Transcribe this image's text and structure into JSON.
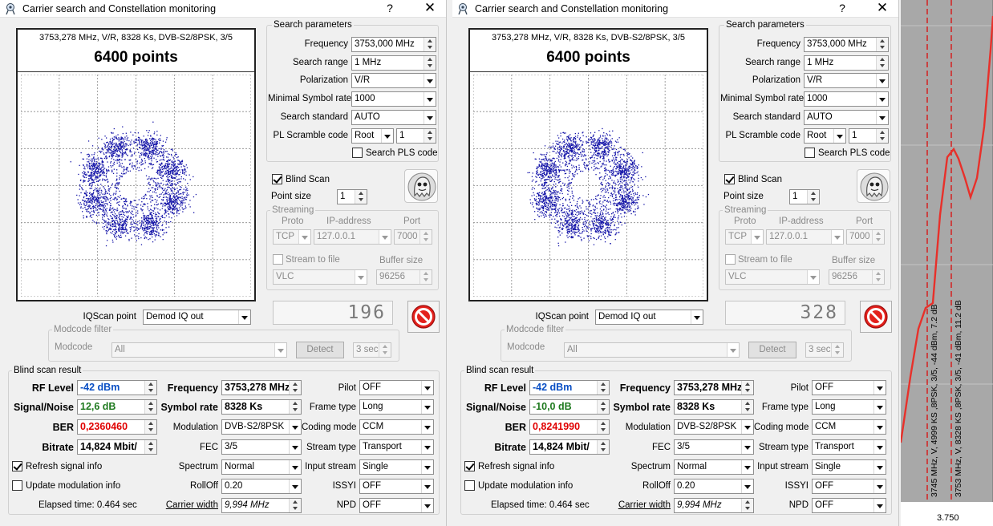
{
  "window": {
    "title": "Carrier search and Constellation monitoring",
    "help": "?",
    "close": "✕"
  },
  "dialogs": [
    {
      "constellation": {
        "info": "3753,278 MHz, V/R, 8328 Ks, DVB-S2/8PSK, 3/5",
        "points": "6400 points"
      },
      "search": {
        "group": "Search parameters",
        "frequency_label": "Frequency",
        "frequency": "3753,000 MHz",
        "range_label": "Search range",
        "range": "1 MHz",
        "polarization_label": "Polarization",
        "polarization": "V/R",
        "min_sr_label": "Minimal Symbol rate",
        "min_sr": "1000",
        "standard_label": "Search standard",
        "standard": "AUTO",
        "pls_label": "PL Scramble code",
        "pls_mode": "Root",
        "pls_value": "1",
        "search_pls_label": "Search PLS code"
      },
      "blind_scan_label": "Blind Scan",
      "point_size_label": "Point size",
      "point_size": "1",
      "streaming": {
        "group": "Streaming",
        "proto_label": "Proto",
        "ip_label": "IP-address",
        "port_label": "Port",
        "proto": "TCP",
        "ip": "127.0.0.1",
        "port": "7000",
        "stream_file_label": "Stream to file",
        "buffer_label": "Buffer size",
        "player": "VLC",
        "buffer": "96256"
      },
      "counter": "196",
      "iqscan_label": "IQScan point",
      "iqscan": "Demod IQ out",
      "modcode": {
        "group": "Modcode filter",
        "label": "Modcode",
        "value": "All",
        "detect": "Detect",
        "interval": "3 sec"
      },
      "result": {
        "group": "Blind scan result",
        "rf_label": "RF Level",
        "rf": "-42 dBm",
        "sn_label": "Signal/Noise",
        "sn": "12,6 dB",
        "sn_color": "green",
        "ber_label": "BER",
        "ber": "0,2360460",
        "bitrate_label": "Bitrate",
        "bitrate": "14,824 Mbit/",
        "freq_label": "Frequency",
        "freq": "3753,278 MHz",
        "sr_label": "Symbol rate",
        "sr": "8328 Ks",
        "mod_label": "Modulation",
        "mod": "DVB-S2/8PSK",
        "fec_label": "FEC",
        "fec": "3/5",
        "spectrum_label": "Spectrum",
        "spectrum": "Normal",
        "rolloff_label": "RollOff",
        "rolloff": "0.20",
        "cw_label": "Carrier width",
        "cw": "9,994 MHz",
        "pilot_label": "Pilot",
        "pilot": "OFF",
        "frame_label": "Frame type",
        "frame": "Long",
        "coding_label": "Coding mode",
        "coding": "CCM",
        "stream_label": "Stream type",
        "stream": "Transport",
        "input_label": "Input stream",
        "input": "Single",
        "issyi_label": "ISSYI",
        "issyi": "OFF",
        "npd_label": "NPD",
        "npd": "OFF",
        "refresh_label": "Refresh signal info",
        "update_label": "Update modulation info",
        "elapsed": "Elapsed time: 0.464 sec"
      }
    },
    {
      "constellation": {
        "info": "3753,278 MHz, V/R, 8328 Ks, DVB-S2/8PSK, 3/5",
        "points": "6400 points"
      },
      "search": {
        "group": "Search parameters",
        "frequency_label": "Frequency",
        "frequency": "3753,000 MHz",
        "range_label": "Search range",
        "range": "1 MHz",
        "polarization_label": "Polarization",
        "polarization": "V/R",
        "min_sr_label": "Minimal Symbol rate",
        "min_sr": "1000",
        "standard_label": "Search standard",
        "standard": "AUTO",
        "pls_label": "PL Scramble code",
        "pls_mode": "Root",
        "pls_value": "1",
        "search_pls_label": "Search PLS code"
      },
      "blind_scan_label": "Blind Scan",
      "point_size_label": "Point size",
      "point_size": "1",
      "streaming": {
        "group": "Streaming",
        "proto_label": "Proto",
        "ip_label": "IP-address",
        "port_label": "Port",
        "proto": "TCP",
        "ip": "127.0.0.1",
        "port": "7000",
        "stream_file_label": "Stream to file",
        "buffer_label": "Buffer size",
        "player": "VLC",
        "buffer": "96256"
      },
      "counter": "328",
      "iqscan_label": "IQScan point",
      "iqscan": "Demod IQ out",
      "modcode": {
        "group": "Modcode filter",
        "label": "Modcode",
        "value": "All",
        "detect": "Detect",
        "interval": "3 sec"
      },
      "result": {
        "group": "Blind scan result",
        "rf_label": "RF Level",
        "rf": "-42 dBm",
        "sn_label": "Signal/Noise",
        "sn": "-10,0 dB",
        "sn_color": "green",
        "ber_label": "BER",
        "ber": "0,8241990",
        "bitrate_label": "Bitrate",
        "bitrate": "14,824 Mbit/",
        "freq_label": "Frequency",
        "freq": "3753,278 MHz",
        "sr_label": "Symbol rate",
        "sr": "8328 Ks",
        "mod_label": "Modulation",
        "mod": "DVB-S2/8PSK",
        "fec_label": "FEC",
        "fec": "3/5",
        "spectrum_label": "Spectrum",
        "spectrum": "Normal",
        "rolloff_label": "RollOff",
        "rolloff": "0.20",
        "cw_label": "Carrier width",
        "cw": "9,994 MHz",
        "pilot_label": "Pilot",
        "pilot": "OFF",
        "frame_label": "Frame type",
        "frame": "Long",
        "coding_label": "Coding mode",
        "coding": "CCM",
        "stream_label": "Stream type",
        "stream": "Transport",
        "input_label": "Input stream",
        "input": "Single",
        "issyi_label": "ISSYI",
        "issyi": "OFF",
        "npd_label": "NPD",
        "npd": "OFF",
        "refresh_label": "Refresh signal info",
        "update_label": "Update modulation info",
        "elapsed": "Elapsed time: 0.464 sec"
      }
    }
  ],
  "spectrum": {
    "marker1": "3745 MHz, V, 4999 KS ,8PSK, 3/5, -44 dBm, 7.2 dB",
    "marker2": "3753 MHz, V, 8328 KS ,8PSK, 3/5, -41 dBm, 11.2 dB",
    "tick": "3.750",
    "colors": {
      "trace": "#e8302a",
      "marker": "#d42020",
      "background": "#a8a8a8"
    }
  },
  "icons": [
    "app-icon",
    "help-icon",
    "close-icon",
    "dropdown-arrow-icon",
    "spin-arrows-icon",
    "ghost-icon",
    "stop-icon"
  ]
}
